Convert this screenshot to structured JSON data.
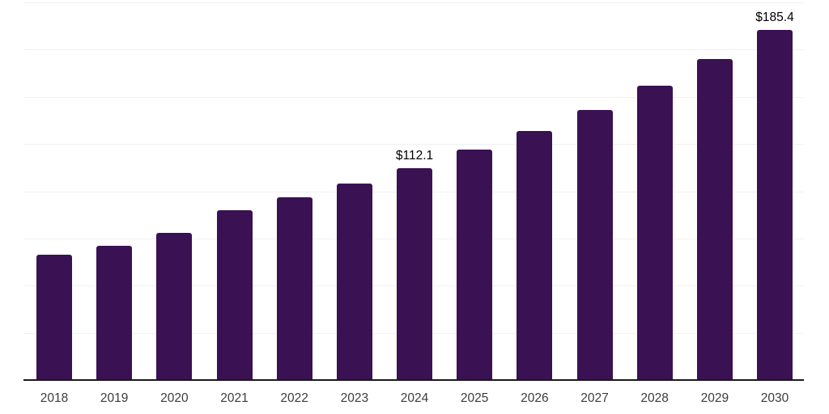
{
  "chart_data": {
    "type": "bar",
    "title": "",
    "xlabel": "",
    "ylabel": "",
    "categories": [
      "2018",
      "2019",
      "2020",
      "2021",
      "2022",
      "2023",
      "2024",
      "2025",
      "2026",
      "2027",
      "2028",
      "2029",
      "2030"
    ],
    "values": [
      66.5,
      71.0,
      77.8,
      89.8,
      96.6,
      103.9,
      112.1,
      122.2,
      132.1,
      143.2,
      156.0,
      170.1,
      185.4
    ],
    "bar_labels": [
      "",
      "",
      "",
      "",
      "",
      "",
      "$112.1",
      "",
      "",
      "",
      "",
      "",
      "$185.4"
    ],
    "ylim": [
      0,
      200
    ],
    "grid_step": 25,
    "grid": "horizontal-only",
    "y_tick_labels_shown": false,
    "legend": "none",
    "colors": {
      "bar": "#3a1152",
      "axis_line": "#1a1a1a",
      "gridline": "#f1f1f1",
      "tick_label": "#3c3c3c",
      "data_label": "#000000",
      "background": "#ffffff"
    }
  }
}
